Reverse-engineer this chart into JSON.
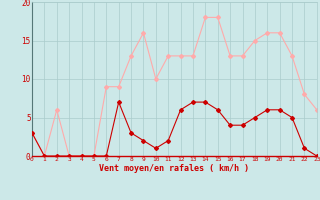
{
  "hours": [
    0,
    1,
    2,
    3,
    4,
    5,
    6,
    7,
    8,
    9,
    10,
    11,
    12,
    13,
    14,
    15,
    16,
    17,
    18,
    19,
    20,
    21,
    22,
    23
  ],
  "mean_wind": [
    3,
    0,
    0,
    0,
    0,
    0,
    0,
    7,
    3,
    2,
    1,
    2,
    6,
    7,
    7,
    6,
    4,
    4,
    5,
    6,
    6,
    5,
    1,
    0
  ],
  "gust_wind": [
    3,
    0,
    6,
    0,
    0,
    0,
    9,
    9,
    13,
    16,
    10,
    13,
    13,
    13,
    18,
    18,
    13,
    13,
    15,
    16,
    16,
    13,
    8,
    6
  ],
  "mean_color": "#cc0000",
  "gust_color": "#ffaaaa",
  "bg_color": "#cce8e8",
  "grid_color": "#aacccc",
  "xlabel": "Vent moyen/en rafales ( km/h )",
  "xlabel_color": "#cc0000",
  "tick_color": "#cc0000",
  "ylim": [
    0,
    20
  ],
  "yticks": [
    0,
    5,
    10,
    15,
    20
  ]
}
